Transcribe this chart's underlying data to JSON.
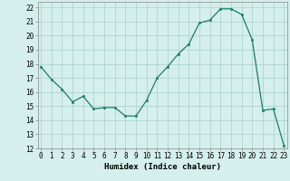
{
  "x_vals": [
    0,
    1,
    2,
    3,
    4,
    5,
    6,
    7,
    8,
    9,
    10,
    11,
    12,
    13,
    14,
    15,
    16,
    17,
    18,
    19,
    20,
    21,
    22,
    23
  ],
  "y_vals": [
    17.8,
    16.9,
    16.2,
    15.3,
    15.7,
    14.8,
    14.9,
    14.9,
    14.3,
    14.3,
    15.4,
    17.0,
    17.8,
    18.7,
    19.4,
    20.9,
    21.1,
    21.9,
    21.9,
    21.5,
    19.7,
    14.7,
    14.8,
    12.2
  ],
  "ylim": [
    12,
    22.4
  ],
  "xlim": [
    -0.3,
    23.3
  ],
  "yticks": [
    12,
    13,
    14,
    15,
    16,
    17,
    18,
    19,
    20,
    21,
    22
  ],
  "xticks": [
    0,
    1,
    2,
    3,
    4,
    5,
    6,
    7,
    8,
    9,
    10,
    11,
    12,
    13,
    14,
    15,
    16,
    17,
    18,
    19,
    20,
    21,
    22,
    23
  ],
  "xlabel": "Humidex (Indice chaleur)",
  "line_color": "#1e7b6a",
  "bg_color": "#d4efec",
  "grid_color": "#aacfc9",
  "tick_label_fontsize": 5.5,
  "xlabel_fontsize": 6.5
}
